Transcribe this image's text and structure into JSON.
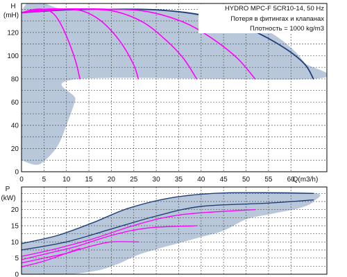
{
  "chart_data": [
    {
      "type": "line",
      "title": "HYDRO MPC-F 5CR10-14, 50 Hz",
      "annotations": [
        "Потеря в фитингах и клапанах",
        "Плотность = 1000 kg/m3"
      ],
      "ylabel": "H",
      "yunit": "(mH)",
      "xlabel": "Q(m3/h)",
      "xlim": [
        0,
        68
      ],
      "ylim": [
        0,
        145
      ],
      "xticks": [
        0,
        5,
        10,
        15,
        20,
        25,
        30,
        35,
        40,
        45,
        50,
        55,
        60
      ],
      "yticks": [
        0,
        20,
        40,
        60,
        80,
        100,
        120
      ],
      "grid": true,
      "operating_area": [
        [
          0,
          10
        ],
        [
          3,
          6
        ],
        [
          5,
          9
        ],
        [
          8,
          22
        ],
        [
          10,
          40
        ],
        [
          12,
          62
        ],
        [
          13,
          80
        ],
        [
          65,
          80
        ],
        [
          63,
          94
        ],
        [
          60,
          107
        ],
        [
          55,
          121
        ],
        [
          50,
          128
        ],
        [
          45,
          133
        ],
        [
          40,
          136
        ],
        [
          35,
          138.5
        ],
        [
          30,
          139.5
        ],
        [
          20,
          140
        ],
        [
          10,
          139.5
        ],
        [
          0,
          137
        ]
      ],
      "series": [
        {
          "color": "#1f3f78",
          "points": [
            [
              0,
              137
            ],
            [
              10,
              139.5
            ],
            [
              20,
              140
            ],
            [
              30,
              139.5
            ],
            [
              40,
              135
            ],
            [
              50,
              124
            ],
            [
              58,
              108
            ],
            [
              63,
              93
            ],
            [
              65,
              80
            ]
          ]
        },
        {
          "color": "#ff00ff",
          "points": [
            [
              0,
              137
            ],
            [
              3,
              140
            ],
            [
              6,
              139
            ],
            [
              8,
              132
            ],
            [
              10,
              117
            ],
            [
              12,
              96
            ],
            [
              13,
              80
            ]
          ]
        },
        {
          "color": "#ff00ff",
          "points": [
            [
              0,
              137
            ],
            [
              5,
              140
            ],
            [
              10,
              140
            ],
            [
              14,
              138
            ],
            [
              18,
              129
            ],
            [
              22,
              112
            ],
            [
              25,
              92
            ],
            [
              26,
              80
            ]
          ]
        },
        {
          "color": "#ff00ff",
          "points": [
            [
              0,
              137
            ],
            [
              8,
              140
            ],
            [
              15,
              140
            ],
            [
              21,
              138
            ],
            [
              27,
              129
            ],
            [
              32,
              114
            ],
            [
              36,
              98
            ],
            [
              39,
              80
            ]
          ]
        },
        {
          "color": "#ff00ff",
          "points": [
            [
              0,
              137
            ],
            [
              10,
              140
            ],
            [
              20,
              140
            ],
            [
              28,
              138
            ],
            [
              36,
              129
            ],
            [
              42,
              116
            ],
            [
              48,
              98
            ],
            [
              52,
              80
            ]
          ]
        }
      ]
    },
    {
      "type": "line",
      "ylabel": "P",
      "yunit": "(kW)",
      "xlim": [
        0,
        68
      ],
      "ylim": [
        0,
        27
      ],
      "yticks": [
        0,
        5,
        10,
        15,
        20
      ],
      "grid": true,
      "operating_area": [
        [
          0,
          9.5
        ],
        [
          8,
          12
        ],
        [
          16,
          16
        ],
        [
          24,
          20.5
        ],
        [
          34,
          23.8
        ],
        [
          46,
          25.2
        ],
        [
          65,
          25.2
        ],
        [
          65,
          22.5
        ],
        [
          62,
          20.5
        ],
        [
          55,
          18.5
        ],
        [
          50,
          17
        ],
        [
          45,
          13.5
        ],
        [
          40,
          11.5
        ],
        [
          32,
          8.5
        ],
        [
          26,
          6
        ],
        [
          22,
          3.5
        ],
        [
          18,
          1.5
        ],
        [
          14,
          0.5
        ],
        [
          10,
          0
        ],
        [
          0,
          0
        ]
      ],
      "series": [
        {
          "color": "#1f3f78",
          "points": [
            [
              0,
              9.5
            ],
            [
              8,
              12
            ],
            [
              16,
              16
            ],
            [
              24,
              20.5
            ],
            [
              34,
              23.8
            ],
            [
              46,
              25.2
            ],
            [
              65,
              25
            ]
          ]
        },
        {
          "color": "#1f3f78",
          "points": [
            [
              0,
              7.5
            ],
            [
              10,
              10
            ],
            [
              20,
              14
            ],
            [
              30,
              18
            ],
            [
              40,
              21
            ],
            [
              55,
              22
            ],
            [
              65,
              23
            ]
          ]
        },
        {
          "color": "#ff00ff",
          "points": [
            [
              0,
              2.3
            ],
            [
              3,
              3.3
            ],
            [
              6,
              4.5
            ],
            [
              9,
              6
            ],
            [
              13,
              8
            ]
          ]
        },
        {
          "color": "#ff00ff",
          "points": [
            [
              0,
              3.5
            ],
            [
              5,
              5
            ],
            [
              10,
              6.5
            ],
            [
              15,
              8.5
            ],
            [
              20,
              10
            ],
            [
              26,
              10
            ]
          ]
        },
        {
          "color": "#ff00ff",
          "points": [
            [
              0,
              4.5
            ],
            [
              6,
              6.5
            ],
            [
              12,
              8.5
            ],
            [
              20,
              12
            ],
            [
              28,
              14.3
            ],
            [
              39,
              15
            ]
          ]
        },
        {
          "color": "#ff00ff",
          "points": [
            [
              0,
              5.5
            ],
            [
              8,
              8
            ],
            [
              16,
              11
            ],
            [
              26,
              15.5
            ],
            [
              36,
              18.5
            ],
            [
              52,
              20
            ]
          ]
        }
      ]
    }
  ],
  "colors": {
    "area": "#b8c8da",
    "grid": "#555555",
    "frame": "#000000",
    "blue": "#1f3f78",
    "magenta": "#ff00ff"
  }
}
